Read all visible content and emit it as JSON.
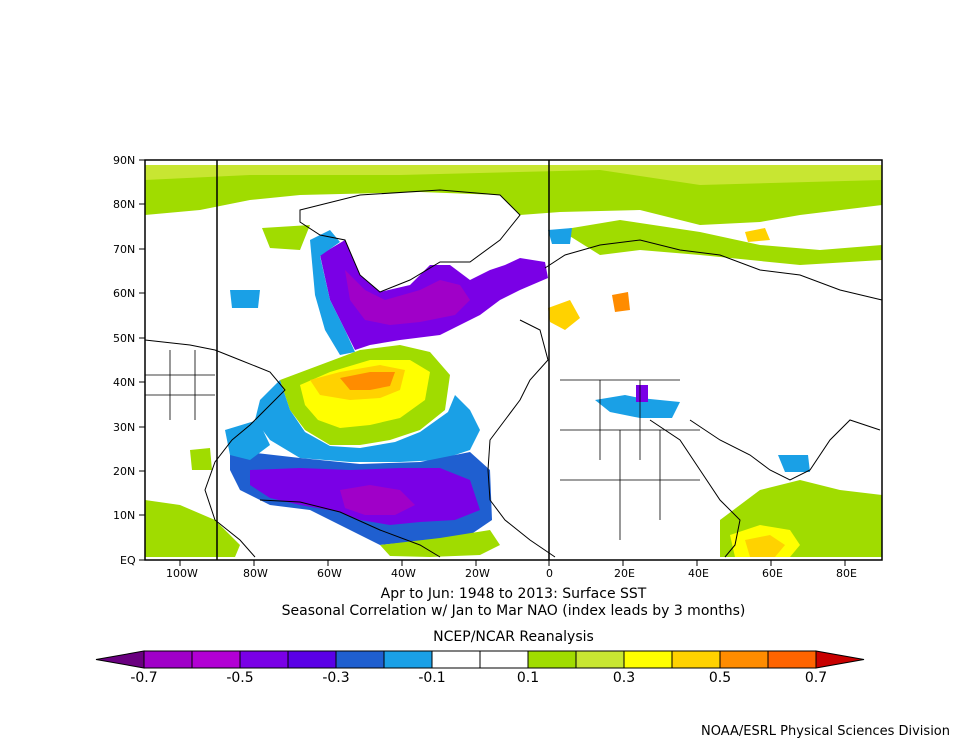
{
  "map": {
    "title_line1": "Apr to Jun: 1948 to 2013: Surface SST",
    "title_line2": "Seasonal Correlation w/ Jan to Mar NAO (index leads by 3 months)",
    "source": "NCEP/NCAR Reanalysis",
    "credit": "NOAA/ESRL Physical Sciences Division",
    "lat_labels": [
      "90N",
      "80N",
      "70N",
      "60N",
      "50N",
      "40N",
      "30N",
      "20N",
      "10N",
      "EQ"
    ],
    "lon_labels": [
      "100W",
      "80W",
      "60W",
      "40W",
      "20W",
      "0",
      "20E",
      "40E",
      "60E",
      "80E"
    ]
  },
  "colorbar": {
    "labels": [
      "-0.7",
      "-0.5",
      "-0.3",
      "-0.1",
      "0.1",
      "0.3",
      "0.5",
      "0.7"
    ],
    "colors": [
      "#a000c8",
      "#b200d4",
      "#7a00e6",
      "#5a00e6",
      "#1f5fd0",
      "#1aa0e6",
      "#ffffff",
      "#ffffff",
      "#a0dc00",
      "#c8e632",
      "#ffff00",
      "#ffd200",
      "#ff8c00",
      "#ff6400"
    ],
    "end_low": "#6a0080",
    "end_high": "#c80000"
  }
}
